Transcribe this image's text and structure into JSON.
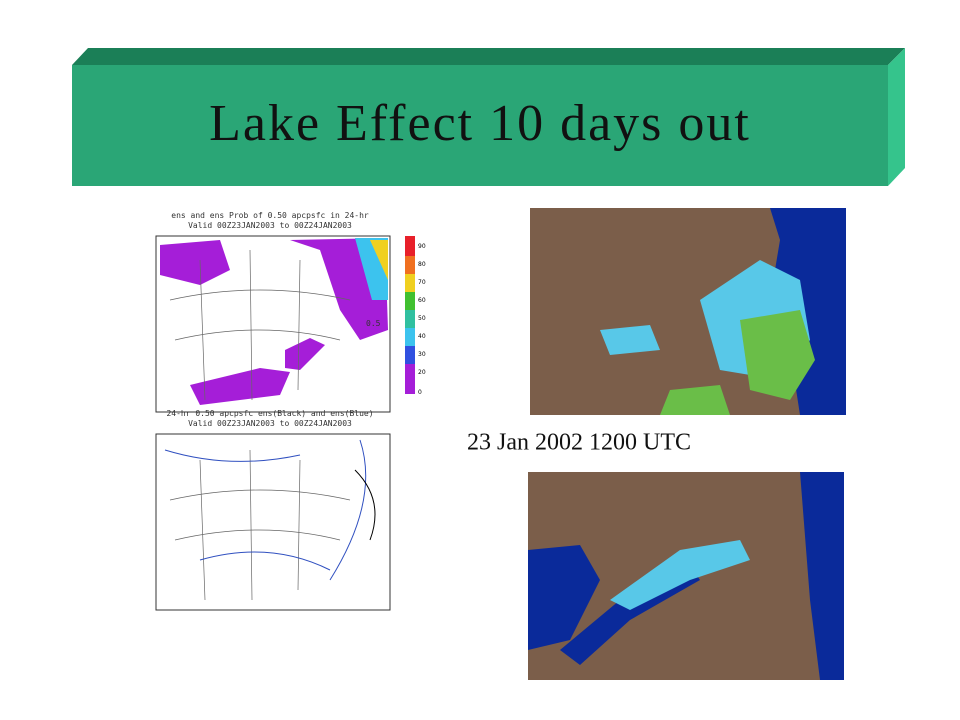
{
  "header": {
    "title": "Lake Effect 10 days out"
  },
  "caption": "23 Jan 2002 1200 UTC",
  "ensemble_maps": {
    "probability": {
      "title_lines": [
        "ens and ens Prob of 0.50 apcpsfc in 24-hr",
        "Valid 00Z23JAN2003 to 00Z24JAN2003"
      ],
      "contour_label": "0.5",
      "colorbar_labels": [
        "90",
        "80",
        "70",
        "60",
        "50",
        "40",
        "30",
        "20",
        "0"
      ]
    },
    "spaghetti": {
      "title_lines": [
        "24-hr 0.50 apcpsfc ens(Black) and ens(Blue)",
        "Valid 00Z23JAN2003 to 00Z24JAN2003"
      ]
    }
  }
}
